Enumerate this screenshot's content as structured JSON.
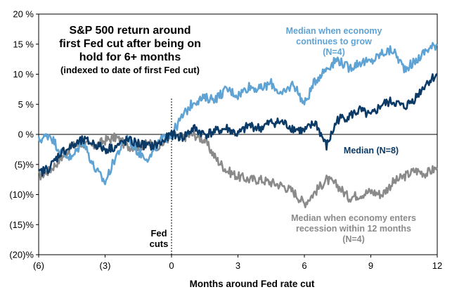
{
  "chart_data": {
    "type": "line",
    "title_lines": [
      "S&P 500 return around",
      "first Fed cut after being on",
      "hold for 6+ months"
    ],
    "subtitle": "(indexed to date of first Fed cut)",
    "xlabel": "Months around Fed rate cut",
    "ylabel": "",
    "xlim": [
      -6,
      12
    ],
    "ylim": [
      -20,
      20
    ],
    "xticks": [
      {
        "value": -6,
        "label": "(6)"
      },
      {
        "value": -3,
        "label": "(3)"
      },
      {
        "value": 0,
        "label": "0"
      },
      {
        "value": 3,
        "label": "3"
      },
      {
        "value": 6,
        "label": "6"
      },
      {
        "value": 9,
        "label": "9"
      },
      {
        "value": 12,
        "label": "12"
      }
    ],
    "yticks": [
      {
        "value": 20,
        "label": "20 %"
      },
      {
        "value": 15,
        "label": "15 %"
      },
      {
        "value": 10,
        "label": "10 %"
      },
      {
        "value": 5,
        "label": "5 %"
      },
      {
        "value": 0,
        "label": "0 %"
      },
      {
        "value": -5,
        "label": "(5)%"
      },
      {
        "value": -10,
        "label": "(10)%"
      },
      {
        "value": -15,
        "label": "(15)%"
      },
      {
        "value": -20,
        "label": "(20)%"
      }
    ],
    "vline": {
      "x": 0,
      "label_lines": [
        "Fed",
        "cuts"
      ]
    },
    "series": [
      {
        "name": "Median when economy enters recession within 12 months (N=4)",
        "label_lines": [
          "Median when economy  enters",
          "recession within 12 months",
          "(N=4)"
        ],
        "color": "#8a8a8a",
        "x": [
          -6,
          -5.5,
          -5,
          -4.5,
          -4,
          -3.5,
          -3,
          -2.5,
          -2,
          -1.5,
          -1,
          -0.5,
          0,
          0.5,
          1,
          1.5,
          2,
          2.5,
          3,
          3.5,
          4,
          4.5,
          5,
          5.5,
          6,
          6.5,
          7,
          7.5,
          8,
          8.5,
          9,
          9.5,
          10,
          10.5,
          11,
          11.5,
          12
        ],
        "values": [
          -7,
          -6,
          -4,
          -2,
          -1.5,
          -2,
          -1,
          -0.5,
          -2,
          -2,
          -1.5,
          -2,
          0,
          -0.5,
          0,
          -1,
          -4,
          -6,
          -7,
          -7.5,
          -7.5,
          -8,
          -8.5,
          -9.5,
          -11.5,
          -9.5,
          -7.5,
          -8.5,
          -10.5,
          -10,
          -9.5,
          -10,
          -8,
          -7,
          -6,
          -6.5,
          -5.5
        ]
      },
      {
        "name": "Median when economy continues to grow (N=4)",
        "label_lines": [
          "Median when economy",
          "continues to grow",
          "(N=4)"
        ],
        "color": "#5fa3d4",
        "x": [
          -6,
          -5.5,
          -5,
          -4.5,
          -4,
          -3.5,
          -3,
          -2.5,
          -2,
          -1.5,
          -1,
          -0.5,
          0,
          0.5,
          1,
          1.5,
          2,
          2.5,
          3,
          3.5,
          4,
          4.5,
          5,
          5.5,
          6,
          6.5,
          7,
          7.5,
          8,
          8.5,
          9,
          9.5,
          10,
          10.5,
          11,
          11.5,
          12
        ],
        "values": [
          -1,
          0,
          -3,
          -4,
          -1,
          -5.5,
          -8,
          -3.5,
          -0.5,
          -3,
          -4,
          -1,
          0,
          3,
          5.5,
          6,
          6,
          7.5,
          6.5,
          8,
          7.5,
          8.5,
          6.5,
          8.5,
          5,
          9,
          11,
          12.5,
          11,
          12,
          12,
          13.5,
          14,
          11,
          12,
          14,
          15
        ]
      },
      {
        "name": "Median (N=8)",
        "label_lines": [
          "Median (N=8)"
        ],
        "color": "#0b3a66",
        "x": [
          -6,
          -5.5,
          -5,
          -4.5,
          -4,
          -3.5,
          -3,
          -2.5,
          -2,
          -1.5,
          -1,
          -0.5,
          0,
          0.5,
          1,
          1.5,
          2,
          2.5,
          3,
          3.5,
          4,
          4.5,
          5,
          5.5,
          6,
          6.5,
          7,
          7.5,
          8,
          8.5,
          9,
          9.5,
          10,
          10.5,
          11,
          11.5,
          12
        ],
        "values": [
          -6.5,
          -5.5,
          -3,
          -2,
          -1,
          -1.5,
          -2.5,
          -2,
          -1,
          -1.5,
          -2,
          -1.5,
          0,
          -0.5,
          1,
          0,
          0.5,
          1,
          0,
          1.5,
          1,
          2,
          2,
          1,
          0.5,
          2,
          -2,
          2.5,
          3,
          4,
          3,
          5,
          5.5,
          4.5,
          6,
          8.5,
          10
        ]
      }
    ]
  }
}
